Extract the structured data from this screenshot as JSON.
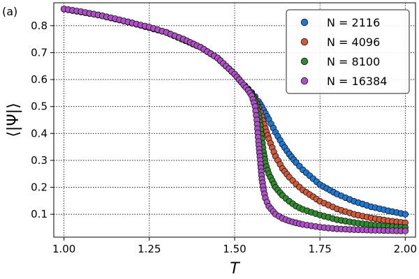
{
  "chart_data": {
    "type": "scatter",
    "panel_label": "(a)",
    "xlabel": "T",
    "ylabel": "⟨|Ψ|⟩",
    "xlim": [
      0.97,
      2.03
    ],
    "ylim": [
      0.015,
      0.885
    ],
    "xticks": [
      1.0,
      1.25,
      1.5,
      1.75,
      2.0
    ],
    "xtick_labels": [
      "1.00",
      "1.25",
      "1.50",
      "1.75",
      "2.00"
    ],
    "yticks": [
      0.1,
      0.2,
      0.3,
      0.4,
      0.5,
      0.6,
      0.7,
      0.8
    ],
    "ytick_labels": [
      "0.1",
      "0.2",
      "0.3",
      "0.4",
      "0.5",
      "0.6",
      "0.7",
      "0.8"
    ],
    "grid": true,
    "legend_position": "top-right",
    "series": [
      {
        "name": "N = 2116",
        "color": "#1f77d4",
        "x": [
          1.0,
          1.1,
          1.2,
          1.3,
          1.4,
          1.45,
          1.5,
          1.52,
          1.54,
          1.55,
          1.56,
          1.57,
          1.58,
          1.59,
          1.6,
          1.62,
          1.64,
          1.66,
          1.68,
          1.7,
          1.75,
          1.8,
          1.85,
          1.9,
          1.95,
          2.0
        ],
        "y": [
          0.862,
          0.84,
          0.81,
          0.775,
          0.72,
          0.68,
          0.62,
          0.59,
          0.565,
          0.552,
          0.537,
          0.519,
          0.498,
          0.475,
          0.452,
          0.404,
          0.36,
          0.323,
          0.292,
          0.265,
          0.21,
          0.175,
          0.148,
          0.128,
          0.113,
          0.1
        ]
      },
      {
        "name": "N = 4096",
        "color": "#d2583a",
        "x": [
          1.0,
          1.1,
          1.2,
          1.3,
          1.4,
          1.45,
          1.5,
          1.52,
          1.54,
          1.55,
          1.56,
          1.57,
          1.58,
          1.59,
          1.6,
          1.62,
          1.64,
          1.66,
          1.68,
          1.7,
          1.75,
          1.8,
          1.85,
          1.9,
          1.95,
          2.0
        ],
        "y": [
          0.862,
          0.84,
          0.81,
          0.775,
          0.72,
          0.68,
          0.62,
          0.59,
          0.562,
          0.547,
          0.527,
          0.497,
          0.462,
          0.418,
          0.38,
          0.315,
          0.27,
          0.238,
          0.212,
          0.19,
          0.148,
          0.12,
          0.1,
          0.086,
          0.076,
          0.068
        ]
      },
      {
        "name": "N = 8100",
        "color": "#2e8b2e",
        "x": [
          1.0,
          1.1,
          1.2,
          1.3,
          1.4,
          1.45,
          1.5,
          1.52,
          1.54,
          1.55,
          1.56,
          1.565,
          1.57,
          1.575,
          1.58,
          1.585,
          1.59,
          1.6,
          1.62,
          1.64,
          1.66,
          1.68,
          1.7,
          1.75,
          1.8,
          1.85,
          1.9,
          1.95,
          2.0
        ],
        "y": [
          0.862,
          0.84,
          0.81,
          0.775,
          0.72,
          0.68,
          0.62,
          0.59,
          0.561,
          0.545,
          0.52,
          0.5,
          0.47,
          0.43,
          0.38,
          0.33,
          0.29,
          0.25,
          0.2,
          0.17,
          0.148,
          0.13,
          0.118,
          0.097,
          0.08,
          0.069,
          0.061,
          0.055,
          0.051
        ]
      },
      {
        "name": "N = 16384",
        "color": "#b050c8",
        "x": [
          1.0,
          1.05,
          1.1,
          1.15,
          1.2,
          1.25,
          1.3,
          1.35,
          1.4,
          1.45,
          1.5,
          1.52,
          1.54,
          1.55,
          1.56,
          1.565,
          1.57,
          1.575,
          1.58,
          1.585,
          1.59,
          1.6,
          1.62,
          1.64,
          1.66,
          1.68,
          1.7,
          1.75,
          1.8,
          1.85,
          1.9,
          1.95,
          2.0
        ],
        "y": [
          0.862,
          0.852,
          0.84,
          0.826,
          0.81,
          0.795,
          0.775,
          0.75,
          0.72,
          0.68,
          0.62,
          0.59,
          0.56,
          0.54,
          0.5,
          0.45,
          0.37,
          0.3,
          0.23,
          0.19,
          0.16,
          0.13,
          0.1,
          0.085,
          0.075,
          0.068,
          0.062,
          0.052,
          0.046,
          0.043,
          0.041,
          0.039,
          0.038
        ]
      }
    ]
  }
}
